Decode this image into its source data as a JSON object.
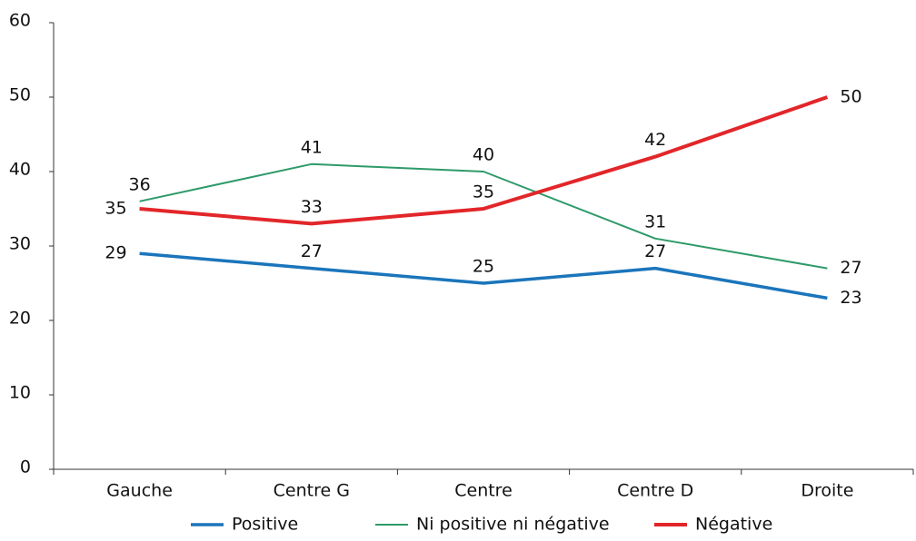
{
  "chart_data": {
    "type": "line",
    "categories": [
      "Gauche",
      "Centre G",
      "Centre",
      "Centre D",
      "Droite"
    ],
    "series": [
      {
        "name": "Positive",
        "color": "#1b75bb",
        "values": [
          29,
          27,
          25,
          27,
          23
        ]
      },
      {
        "name": "Ni positive ni négative",
        "color": "#2e9a6a",
        "values": [
          36,
          41,
          40,
          31,
          27
        ]
      },
      {
        "name": "Négative",
        "color": "#e2262a",
        "values": [
          35,
          33,
          35,
          42,
          50
        ]
      }
    ],
    "ylim": [
      0,
      60
    ],
    "yticks": [
      0,
      10,
      20,
      30,
      40,
      50,
      60
    ],
    "legend": "bottom"
  }
}
